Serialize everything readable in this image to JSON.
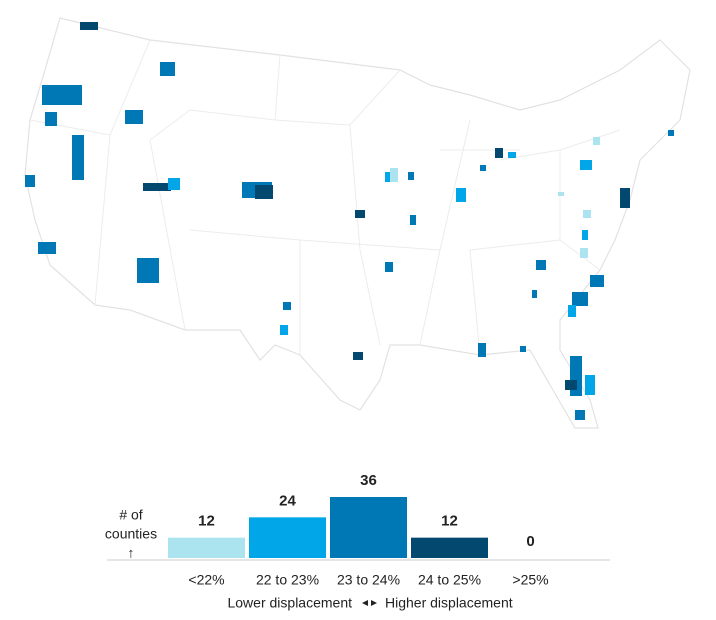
{
  "chart_data": {
    "type": "bar",
    "y_label": [
      "# of",
      "counties",
      "↑"
    ],
    "categories": [
      "<22%",
      "22 to 23%",
      "23 to 24%",
      "24 to 25%",
      ">25%"
    ],
    "values": [
      12,
      24,
      36,
      12,
      0
    ],
    "colors": [
      "#abe3ef",
      "#00a6e8",
      "#0078b5",
      "#02486f",
      "#cfd8dc"
    ],
    "x_label_left": "Lower displacement",
    "x_label_right": "Higher displacement"
  }
}
